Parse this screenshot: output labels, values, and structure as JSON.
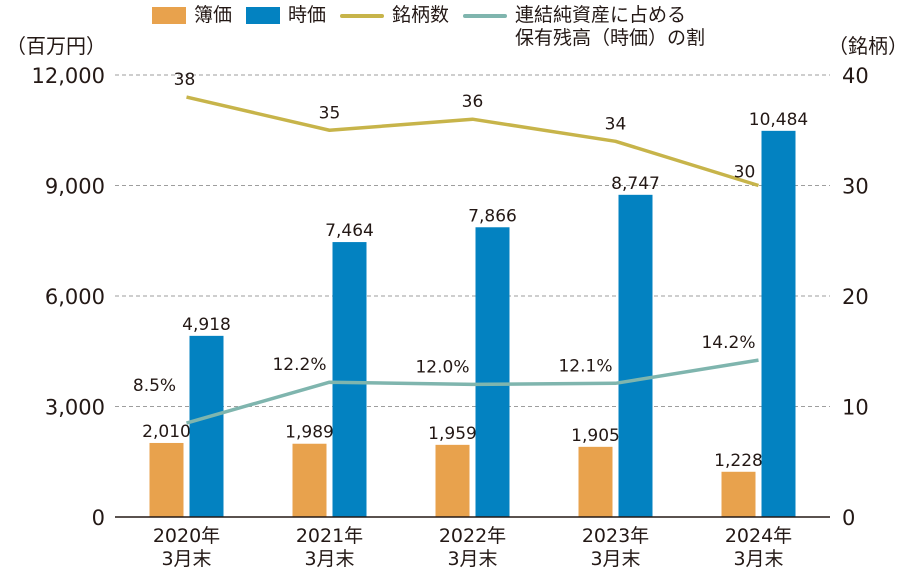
{
  "colors": {
    "book_value": "#E8A24D",
    "market_value": "#0382C1",
    "num_stocks": "#C7B44A",
    "ratio": "#7FB5AE",
    "grid": "#9E9E9E",
    "text": "#231815"
  },
  "legend": [
    {
      "label": "簿価",
      "marker": "bar",
      "color_key": "book_value"
    },
    {
      "label": "時価",
      "marker": "bar",
      "color_key": "market_value"
    },
    {
      "label": "銘柄数",
      "marker": "line",
      "color_key": "num_stocks"
    },
    {
      "label": "連結純資産に占める\n保有残高（時価）の割",
      "marker": "line",
      "color_key": "ratio"
    }
  ],
  "chart_data": {
    "type": "bar",
    "categories": [
      "2020年\n3月末",
      "2021年\n3月末",
      "2022年\n3月末",
      "2023年\n3月末",
      "2024年\n3月末"
    ],
    "y_left": {
      "label": "（百万円）",
      "ylim": [
        0,
        12000
      ],
      "ticks": [
        "0",
        "3,000",
        "6,000",
        "9,000",
        "12,000"
      ],
      "tick_values": [
        0,
        3000,
        6000,
        9000,
        12000
      ]
    },
    "y_right": {
      "label": "（銘柄）",
      "ylim": [
        0,
        40
      ],
      "ticks": [
        "0",
        "10",
        "20",
        "30",
        "40"
      ],
      "tick_values": [
        0,
        10,
        20,
        30,
        40
      ]
    },
    "grid": "horizontal dashed",
    "legend_position": "top",
    "series": [
      {
        "name": "簿価",
        "type": "bar",
        "axis": "left",
        "color_key": "book_value",
        "values": [
          2010,
          1989,
          1959,
          1905,
          1228
        ],
        "labels": [
          "2,010",
          "1,989",
          "1,959",
          "1,905",
          "1,228"
        ]
      },
      {
        "name": "時価",
        "type": "bar",
        "axis": "left",
        "color_key": "market_value",
        "values": [
          4918,
          7464,
          7866,
          8747,
          10484
        ],
        "labels": [
          "4,918",
          "7,464",
          "7,866",
          "8,747",
          "10,484"
        ]
      },
      {
        "name": "銘柄数",
        "type": "line",
        "axis": "right",
        "color_key": "num_stocks",
        "values": [
          38,
          35,
          36,
          34,
          30
        ],
        "labels": [
          "38",
          "35",
          "36",
          "34",
          "30"
        ]
      },
      {
        "name": "連結純資産に占める保有残高（時価）の割",
        "type": "line",
        "axis": "right",
        "color_key": "ratio",
        "values": [
          8.5,
          12.2,
          12.0,
          12.1,
          14.2
        ],
        "labels": [
          "8.5%",
          "12.2%",
          "12.0%",
          "12.1%",
          "14.2%"
        ]
      }
    ]
  }
}
